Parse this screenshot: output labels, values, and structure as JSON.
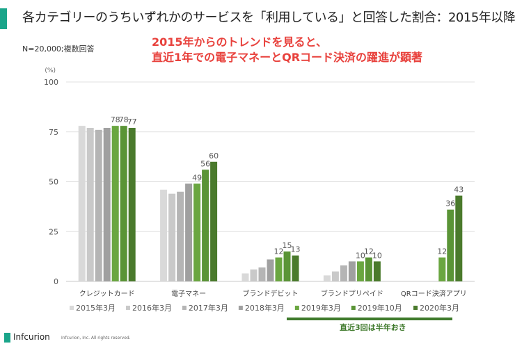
{
  "header": {
    "title": "各カテゴリーのうちいずれかのサービスを「利用している」と回答した割合：2015年以降",
    "sample": "N=20,000;複数回答",
    "headline_line1": "2015年からのトレンドを見ると、",
    "headline_line2": "直近1年での電子マネーとQRコード決済の躍進が顕著"
  },
  "chart_data": {
    "type": "bar",
    "ylabel": "(%)",
    "ylim": [
      0,
      100
    ],
    "yticks": [
      0,
      25,
      50,
      75,
      100
    ],
    "grid": true,
    "legend_position": "bottom",
    "categories": [
      "クレジットカード",
      "電子マネー",
      "ブランドデビット",
      "ブランドプリペイド",
      "QRコード決済アプリ"
    ],
    "series": [
      {
        "name": "2015年3月",
        "color": "#d9d9d9",
        "values": [
          78,
          46,
          4,
          3,
          null
        ],
        "labels": [
          null,
          null,
          null,
          null,
          null
        ]
      },
      {
        "name": "2016年3月",
        "color": "#c9c9c9",
        "values": [
          77,
          44,
          6,
          5,
          null
        ],
        "labels": [
          null,
          null,
          null,
          null,
          null
        ]
      },
      {
        "name": "2017年3月",
        "color": "#b5b5b5",
        "values": [
          76,
          45,
          7,
          8,
          null
        ],
        "labels": [
          null,
          null,
          null,
          null,
          null
        ]
      },
      {
        "name": "2018年3月",
        "color": "#a0a0a0",
        "values": [
          77,
          49,
          11,
          10,
          null
        ],
        "labels": [
          null,
          null,
          null,
          null,
          null
        ]
      },
      {
        "name": "2019年3月",
        "color": "#6aa640",
        "values": [
          78,
          49,
          12,
          10,
          12
        ],
        "labels": [
          "78",
          "49",
          "12",
          "10",
          "12"
        ]
      },
      {
        "name": "2019年10月",
        "color": "#5a9436",
        "values": [
          78,
          56,
          15,
          12,
          36
        ],
        "labels": [
          "78",
          "56",
          "15",
          "12",
          "36"
        ]
      },
      {
        "name": "2020年3月",
        "color": "#4a7a2c",
        "values": [
          77,
          60,
          13,
          10,
          43
        ],
        "labels": [
          "77",
          "60",
          "13",
          "10",
          "43"
        ]
      }
    ]
  },
  "annotation": {
    "note": "直近3回は半年おき"
  },
  "footer": {
    "brand": "Infcurion",
    "copyright": "Infcurion, Inc.  All rights reserved."
  }
}
